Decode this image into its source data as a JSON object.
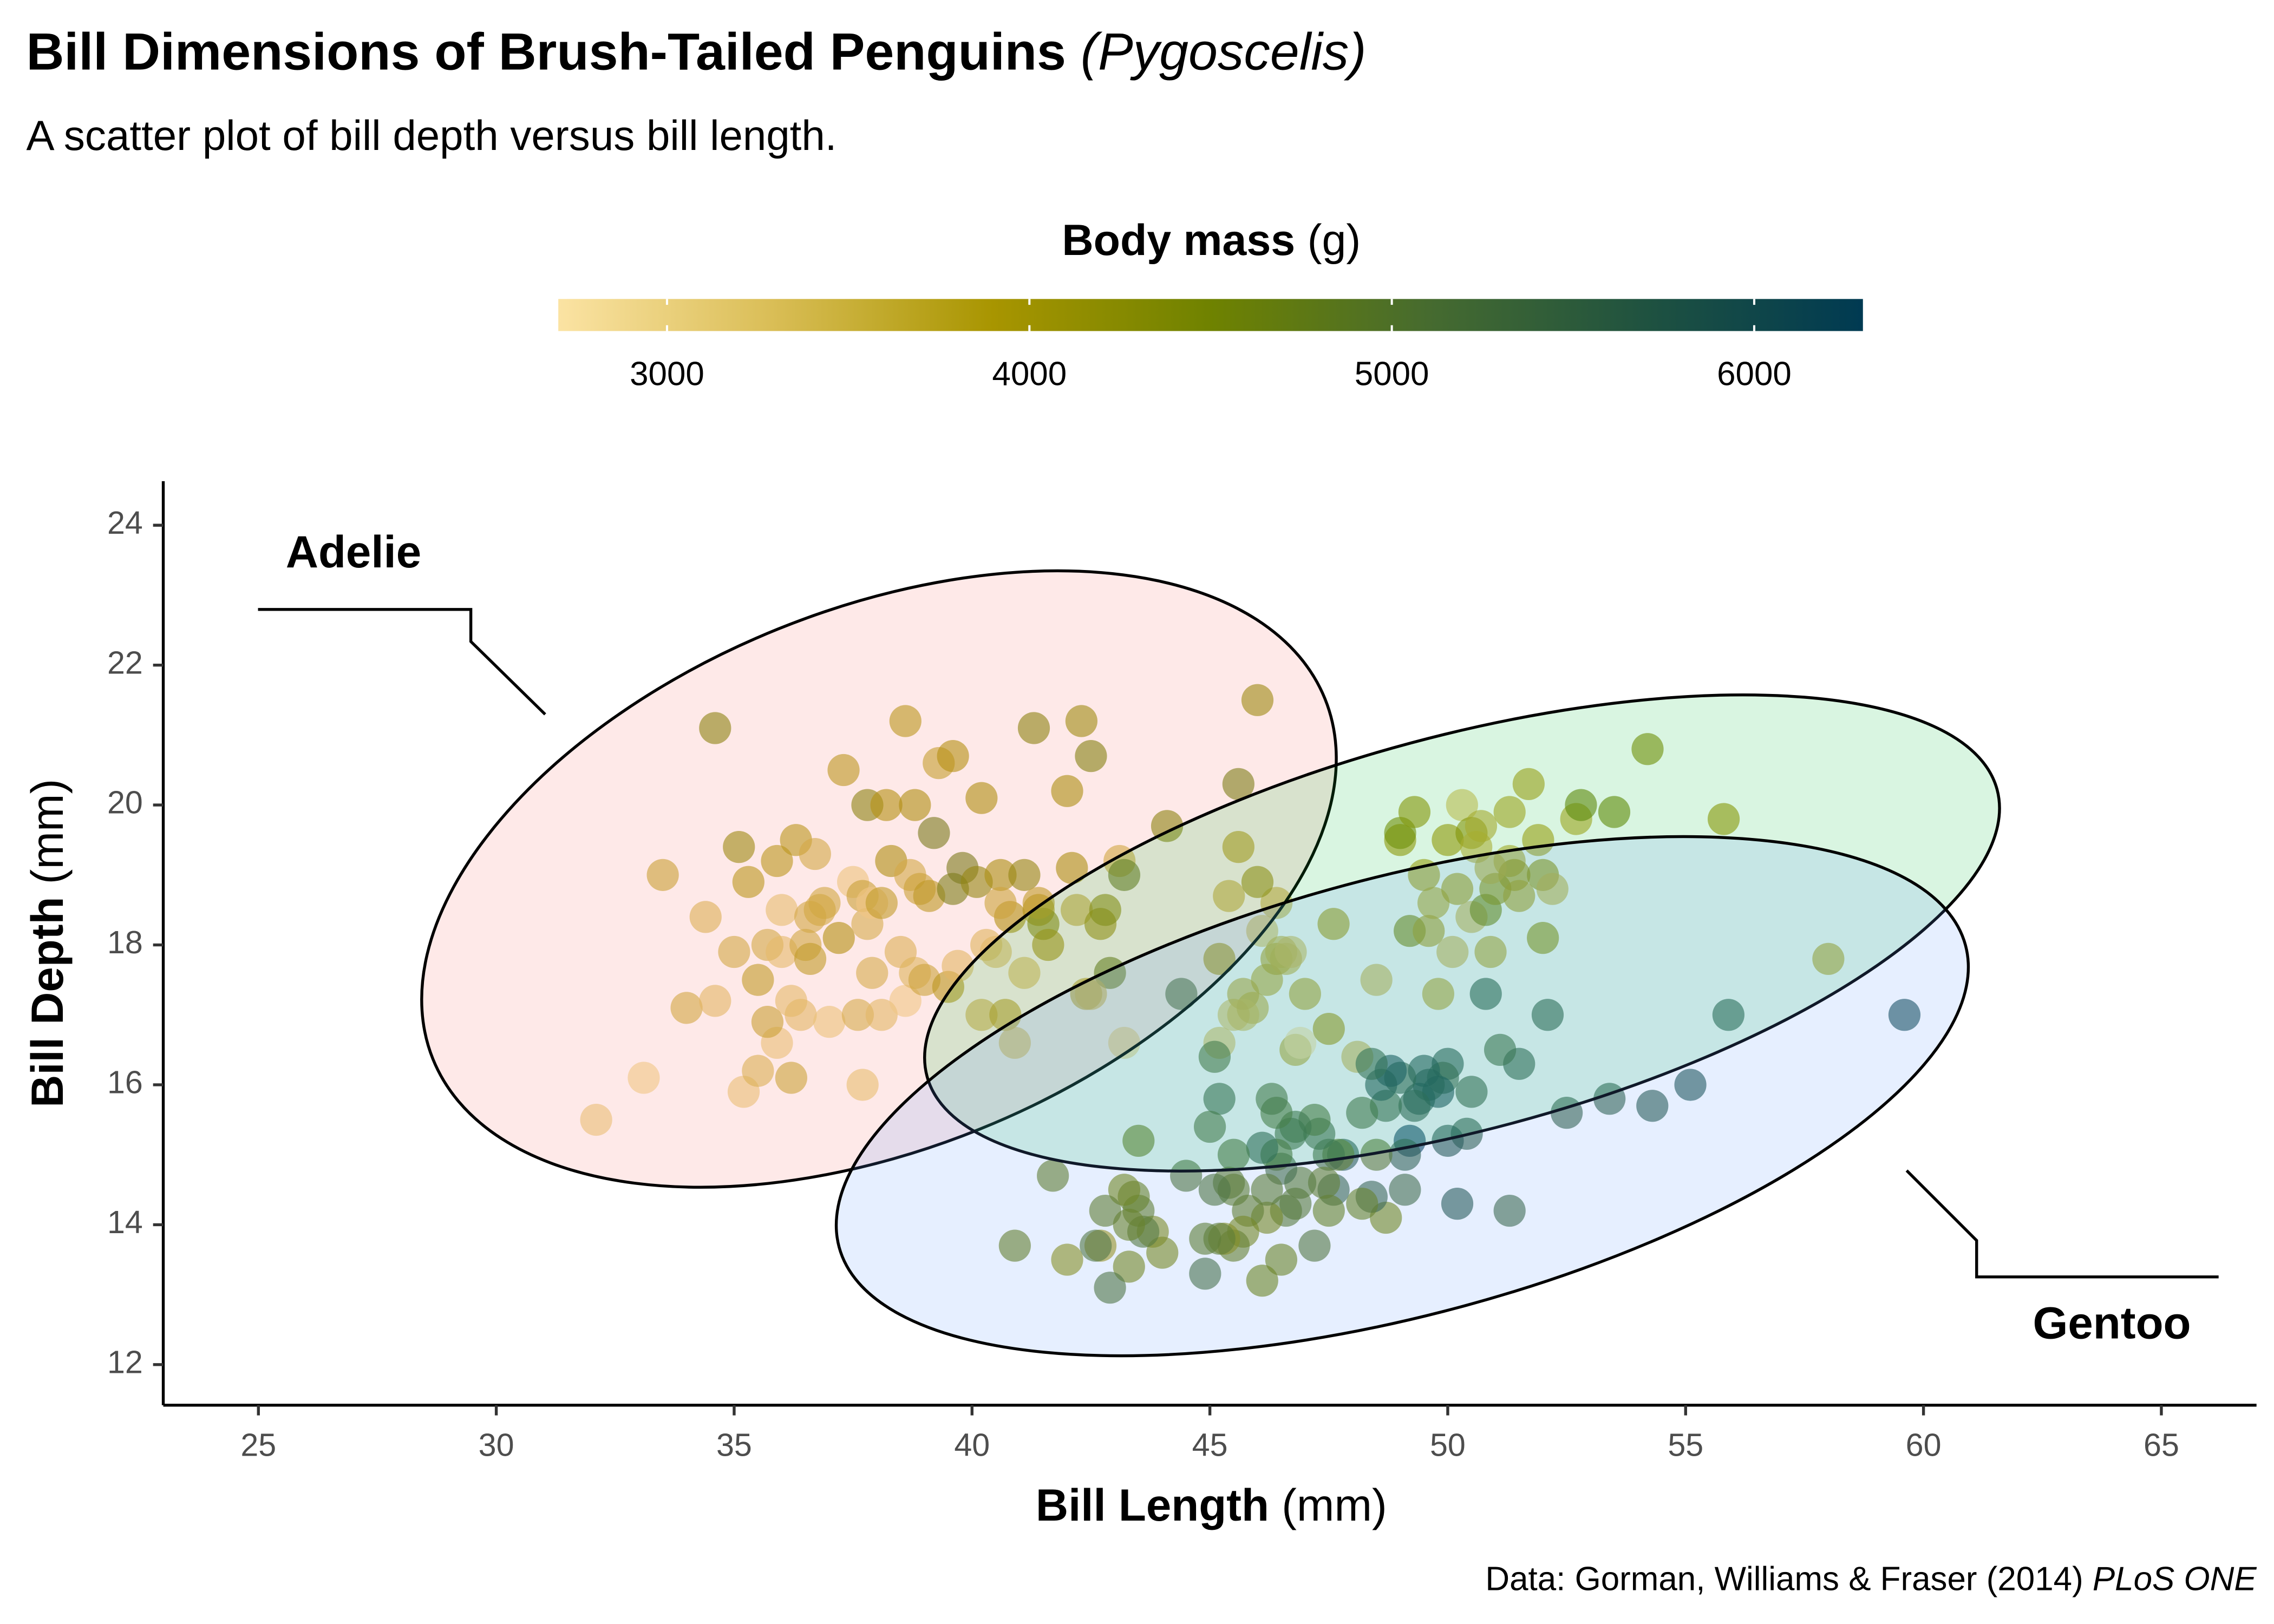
{
  "chart_data": {
    "type": "scatter",
    "title": "Bill Dimensions of Brush-Tailed Penguins",
    "title_species": "(Pygoscelis)",
    "subtitle": "A scatter plot of bill depth versus bill length.",
    "xlabel": {
      "text": "Bill Length",
      "unit": "(mm)"
    },
    "ylabel": {
      "text": "Bill Depth",
      "unit": "(mm)"
    },
    "caption": {
      "text": "Data: Gorman, Williams & Fraser (2014)",
      "journal": "PLoS ONE"
    },
    "annotations": [
      "Adelie",
      "Gentoo"
    ],
    "colorbar": {
      "title": "Body mass",
      "unit": "(g)",
      "lim": [
        2700,
        6300
      ],
      "ticks": [
        3000,
        4000,
        5000,
        6000
      ],
      "colors": [
        "#fbe3a3",
        "#d9bd55",
        "#a89500",
        "#6f8200",
        "#466b2f",
        "#1f5240",
        "#003a52"
      ]
    },
    "xlim": [
      23,
      67
    ],
    "xticks": [
      25,
      30,
      35,
      40,
      45,
      50,
      55,
      60,
      65
    ],
    "ylim": [
      11.42,
      24.63
    ],
    "yticks": [
      12,
      14,
      16,
      18,
      20,
      22,
      24
    ],
    "opacity": 0.6,
    "x": [
      32.1,
      33.1,
      33.5,
      34.0,
      34.4,
      34.6,
      34.6,
      35.0,
      35.1,
      35.2,
      35.3,
      35.5,
      35.5,
      35.7,
      35.9,
      35.9,
      36.0,
      36.0,
      36.2,
      36.2,
      36.3,
      36.4,
      36.5,
      36.6,
      36.7,
      36.8,
      36.9,
      37.0,
      37.2,
      37.3,
      37.5,
      37.6,
      37.7,
      37.7,
      37.8,
      37.8,
      37.9,
      38.1,
      38.1,
      38.2,
      38.3,
      38.5,
      38.6,
      38.6,
      38.7,
      38.8,
      38.9,
      39.0,
      39.1,
      39.2,
      39.3,
      39.5,
      39.6,
      39.7,
      39.8,
      40.1,
      40.2,
      40.3,
      40.5,
      40.6,
      40.7,
      40.8,
      40.9,
      41.1,
      41.1,
      41.3,
      41.4,
      41.5,
      41.6,
      42.0,
      42.1,
      42.2,
      42.3,
      42.5,
      42.7,
      42.8,
      42.9,
      43.1,
      43.2,
      44.1,
      45.6,
      46.0,
      38.8,
      39.6,
      40.6,
      41.4,
      36.6,
      35.7,
      40.2,
      37.9,
      42.4,
      42.5,
      43.2,
      45.2,
      45.4,
      45.5,
      45.6,
      45.7,
      45.9,
      46.1,
      46.2,
      46.4,
      46.4,
      46.5,
      46.6,
      46.7,
      46.8,
      46.9,
      47.0,
      47.5,
      48.1,
      48.5,
      49.0,
      49.2,
      49.5,
      49.6,
      49.7,
      49.8,
      50.0,
      50.1,
      50.2,
      50.3,
      50.5,
      50.5,
      50.6,
      50.7,
      50.8,
      50.9,
      51.0,
      51.3,
      51.4,
      51.5,
      51.7,
      51.9,
      52.0,
      52.0,
      52.2,
      52.7,
      52.8,
      53.5,
      54.2,
      55.8,
      58.0,
      49.0,
      45.2,
      47.6,
      50.9,
      51.3,
      49.3,
      46.0,
      45.7,
      59.6,
      55.9,
      55.1,
      54.3,
      53.4,
      52.5,
      52.1,
      51.5,
      51.3,
      51.1,
      50.8,
      50.5,
      50.4,
      50.2,
      50.0,
      50.0,
      49.9,
      49.8,
      49.6,
      49.5,
      49.4,
      49.3,
      49.2,
      49.1,
      49.1,
      49.0,
      48.8,
      48.7,
      48.7,
      48.6,
      48.5,
      48.4,
      48.4,
      48.2,
      48.2,
      47.8,
      47.7,
      47.6,
      47.5,
      47.5,
      47.4,
      47.3,
      47.2,
      47.2,
      46.9,
      46.8,
      46.8,
      46.7,
      46.6,
      46.5,
      46.5,
      46.4,
      46.4,
      46.3,
      46.2,
      46.2,
      46.1,
      46.1,
      45.8,
      45.7,
      45.5,
      45.5,
      45.4,
      45.3,
      45.2,
      45.2,
      45.1,
      45.0,
      44.9,
      44.9,
      44.5,
      44.4,
      44.0,
      43.8,
      43.6,
      43.5,
      43.5,
      43.4,
      43.3,
      43.3,
      43.2,
      42.9,
      42.8,
      42.7,
      42.6,
      42.0,
      41.7,
      40.9,
      45.5,
      45.1
    ],
    "values": [
      15.5,
      16.1,
      19.0,
      17.1,
      18.4,
      21.1,
      17.2,
      17.9,
      19.4,
      15.9,
      18.9,
      17.5,
      16.2,
      18.0,
      19.2,
      16.6,
      17.9,
      18.5,
      17.2,
      16.1,
      19.5,
      17.0,
      18.0,
      18.4,
      19.3,
      18.5,
      18.6,
      16.9,
      18.1,
      20.5,
      18.9,
      17.0,
      18.7,
      16.0,
      20.0,
      18.3,
      18.6,
      18.6,
      17.0,
      20.0,
      19.2,
      17.9,
      21.2,
      17.2,
      19.0,
      17.6,
      18.8,
      17.5,
      18.7,
      19.6,
      20.6,
      17.4,
      18.8,
      17.7,
      19.1,
      18.9,
      17.0,
      18.0,
      17.9,
      19.0,
      17.0,
      18.4,
      16.6,
      19.0,
      17.6,
      21.1,
      18.5,
      18.3,
      18.0,
      20.2,
      19.1,
      18.5,
      21.2,
      20.7,
      18.3,
      18.5,
      17.6,
      19.2,
      19.0,
      19.7,
      20.3,
      21.5,
      20.0,
      20.7,
      18.6,
      18.6,
      17.8,
      16.9,
      20.1,
      17.6,
      17.3,
      17.3,
      16.6,
      17.8,
      18.7,
      17.0,
      19.4,
      17.3,
      17.1,
      18.2,
      17.5,
      18.6,
      17.8,
      17.9,
      17.8,
      17.9,
      16.5,
      16.6,
      17.3,
      16.8,
      16.4,
      17.5,
      19.5,
      18.2,
      19.0,
      18.2,
      18.6,
      17.3,
      19.5,
      17.9,
      18.8,
      20.0,
      18.4,
      19.6,
      19.4,
      19.7,
      18.5,
      17.9,
      18.8,
      19.2,
      19.0,
      18.7,
      20.3,
      19.5,
      19.0,
      18.1,
      18.8,
      19.8,
      20.0,
      19.9,
      20.8,
      19.8,
      17.8,
      19.6,
      16.6,
      18.3,
      19.1,
      19.9,
      19.9,
      18.9,
      17.0,
      17.0,
      17.0,
      16.0,
      15.7,
      15.8,
      15.6,
      17.0,
      16.3,
      14.2,
      16.5,
      17.3,
      15.9,
      15.3,
      14.3,
      16.3,
      15.2,
      16.1,
      15.9,
      16.0,
      16.2,
      15.8,
      15.7,
      15.2,
      14.5,
      15.0,
      16.1,
      16.2,
      14.1,
      15.7,
      16.0,
      15.0,
      16.3,
      14.4,
      14.3,
      15.6,
      15.0,
      15.0,
      14.5,
      15.0,
      14.2,
      14.6,
      15.3,
      13.7,
      15.5,
      14.6,
      14.3,
      15.4,
      15.3,
      14.2,
      14.8,
      13.5,
      15.0,
      15.6,
      15.8,
      14.1,
      14.5,
      15.1,
      13.2,
      14.2,
      13.9,
      13.7,
      14.5,
      14.6,
      13.8,
      15.8,
      13.8,
      14.5,
      15.4,
      13.8,
      13.3,
      14.7,
      17.3,
      13.6,
      13.9,
      13.9,
      14.2,
      15.2,
      14.4,
      14.0,
      13.4,
      14.5,
      13.1,
      14.2,
      13.7,
      13.7,
      13.5,
      14.7,
      13.7,
      15.0,
      16.4
    ],
    "color_values": [
      3050,
      2900,
      3600,
      3475,
      3325,
      4400,
      3200,
      3450,
      4200,
      3050,
      3800,
      3700,
      3350,
      3450,
      3800,
      3050,
      3150,
      3100,
      3150,
      3550,
      3800,
      3200,
      3500,
      3475,
      3450,
      3500,
      3500,
      3000,
      3900,
      3775,
      2975,
      3400,
      3600,
      3075,
      4400,
      3400,
      2900,
      3700,
      3175,
      3900,
      3950,
      3325,
      3800,
      2900,
      3450,
      3275,
      3600,
      3550,
      3750,
      4675,
      3650,
      3800,
      4600,
      3200,
      4650,
      4300,
      3400,
      3250,
      3200,
      4000,
      3675,
      3900,
      3200,
      4300,
      3275,
      4400,
      3875,
      4300,
      3950,
      4000,
      4000,
      3550,
      4150,
      4500,
      4075,
      4250,
      4700,
      3500,
      4775,
      4400,
      4600,
      4200,
      3950,
      3900,
      3550,
      3700,
      3700,
      3600,
      3975,
      3400,
      3600,
      3350,
      2900,
      3950,
      3525,
      3250,
      3800,
      3600,
      3575,
      3250,
      3650,
      3450,
      3700,
      3500,
      3500,
      3300,
      3650,
      2700,
      3700,
      3900,
      3400,
      3400,
      3950,
      4400,
      3800,
      3775,
      3650,
      3675,
      3900,
      3400,
      3800,
      3300,
      3400,
      4050,
      3525,
      3600,
      4450,
      3675,
      4100,
      3650,
      3950,
      3750,
      3775,
      3800,
      4050,
      4150,
      3450,
      3725,
      4550,
      4500,
      4300,
      4000,
      3700,
      4300,
      3250,
      3850,
      3550,
      3700,
      4050,
      4100,
      3350,
      6050,
      5600,
      5850,
      5650,
      5500,
      5450,
      5550,
      5500,
      5300,
      5250,
      5600,
      5400,
      5550,
      5700,
      5700,
      5700,
      5400,
      5950,
      5700,
      5800,
      5800,
      5550,
      6300,
      5200,
      5500,
      5550,
      6000,
      4450,
      5350,
      5800,
      4850,
      5400,
      5400,
      4600,
      5100,
      5650,
      4725,
      5400,
      5150,
      4600,
      4725,
      5250,
      4925,
      4975,
      4875,
      4850,
      5150,
      5200,
      4850,
      5200,
      4550,
      4975,
      5000,
      5050,
      4375,
      4800,
      5500,
      4500,
      4700,
      4400,
      4650,
      4750,
      4800,
      4200,
      5300,
      4750,
      5000,
      5050,
      4750,
      5100,
      5000,
      5250,
      4350,
      4300,
      4900,
      4700,
      4650,
      4600,
      4575,
      4400,
      4450,
      5000,
      4700,
      3950,
      4950,
      4150,
      4700,
      4650,
      5000,
      5050
    ]
  }
}
